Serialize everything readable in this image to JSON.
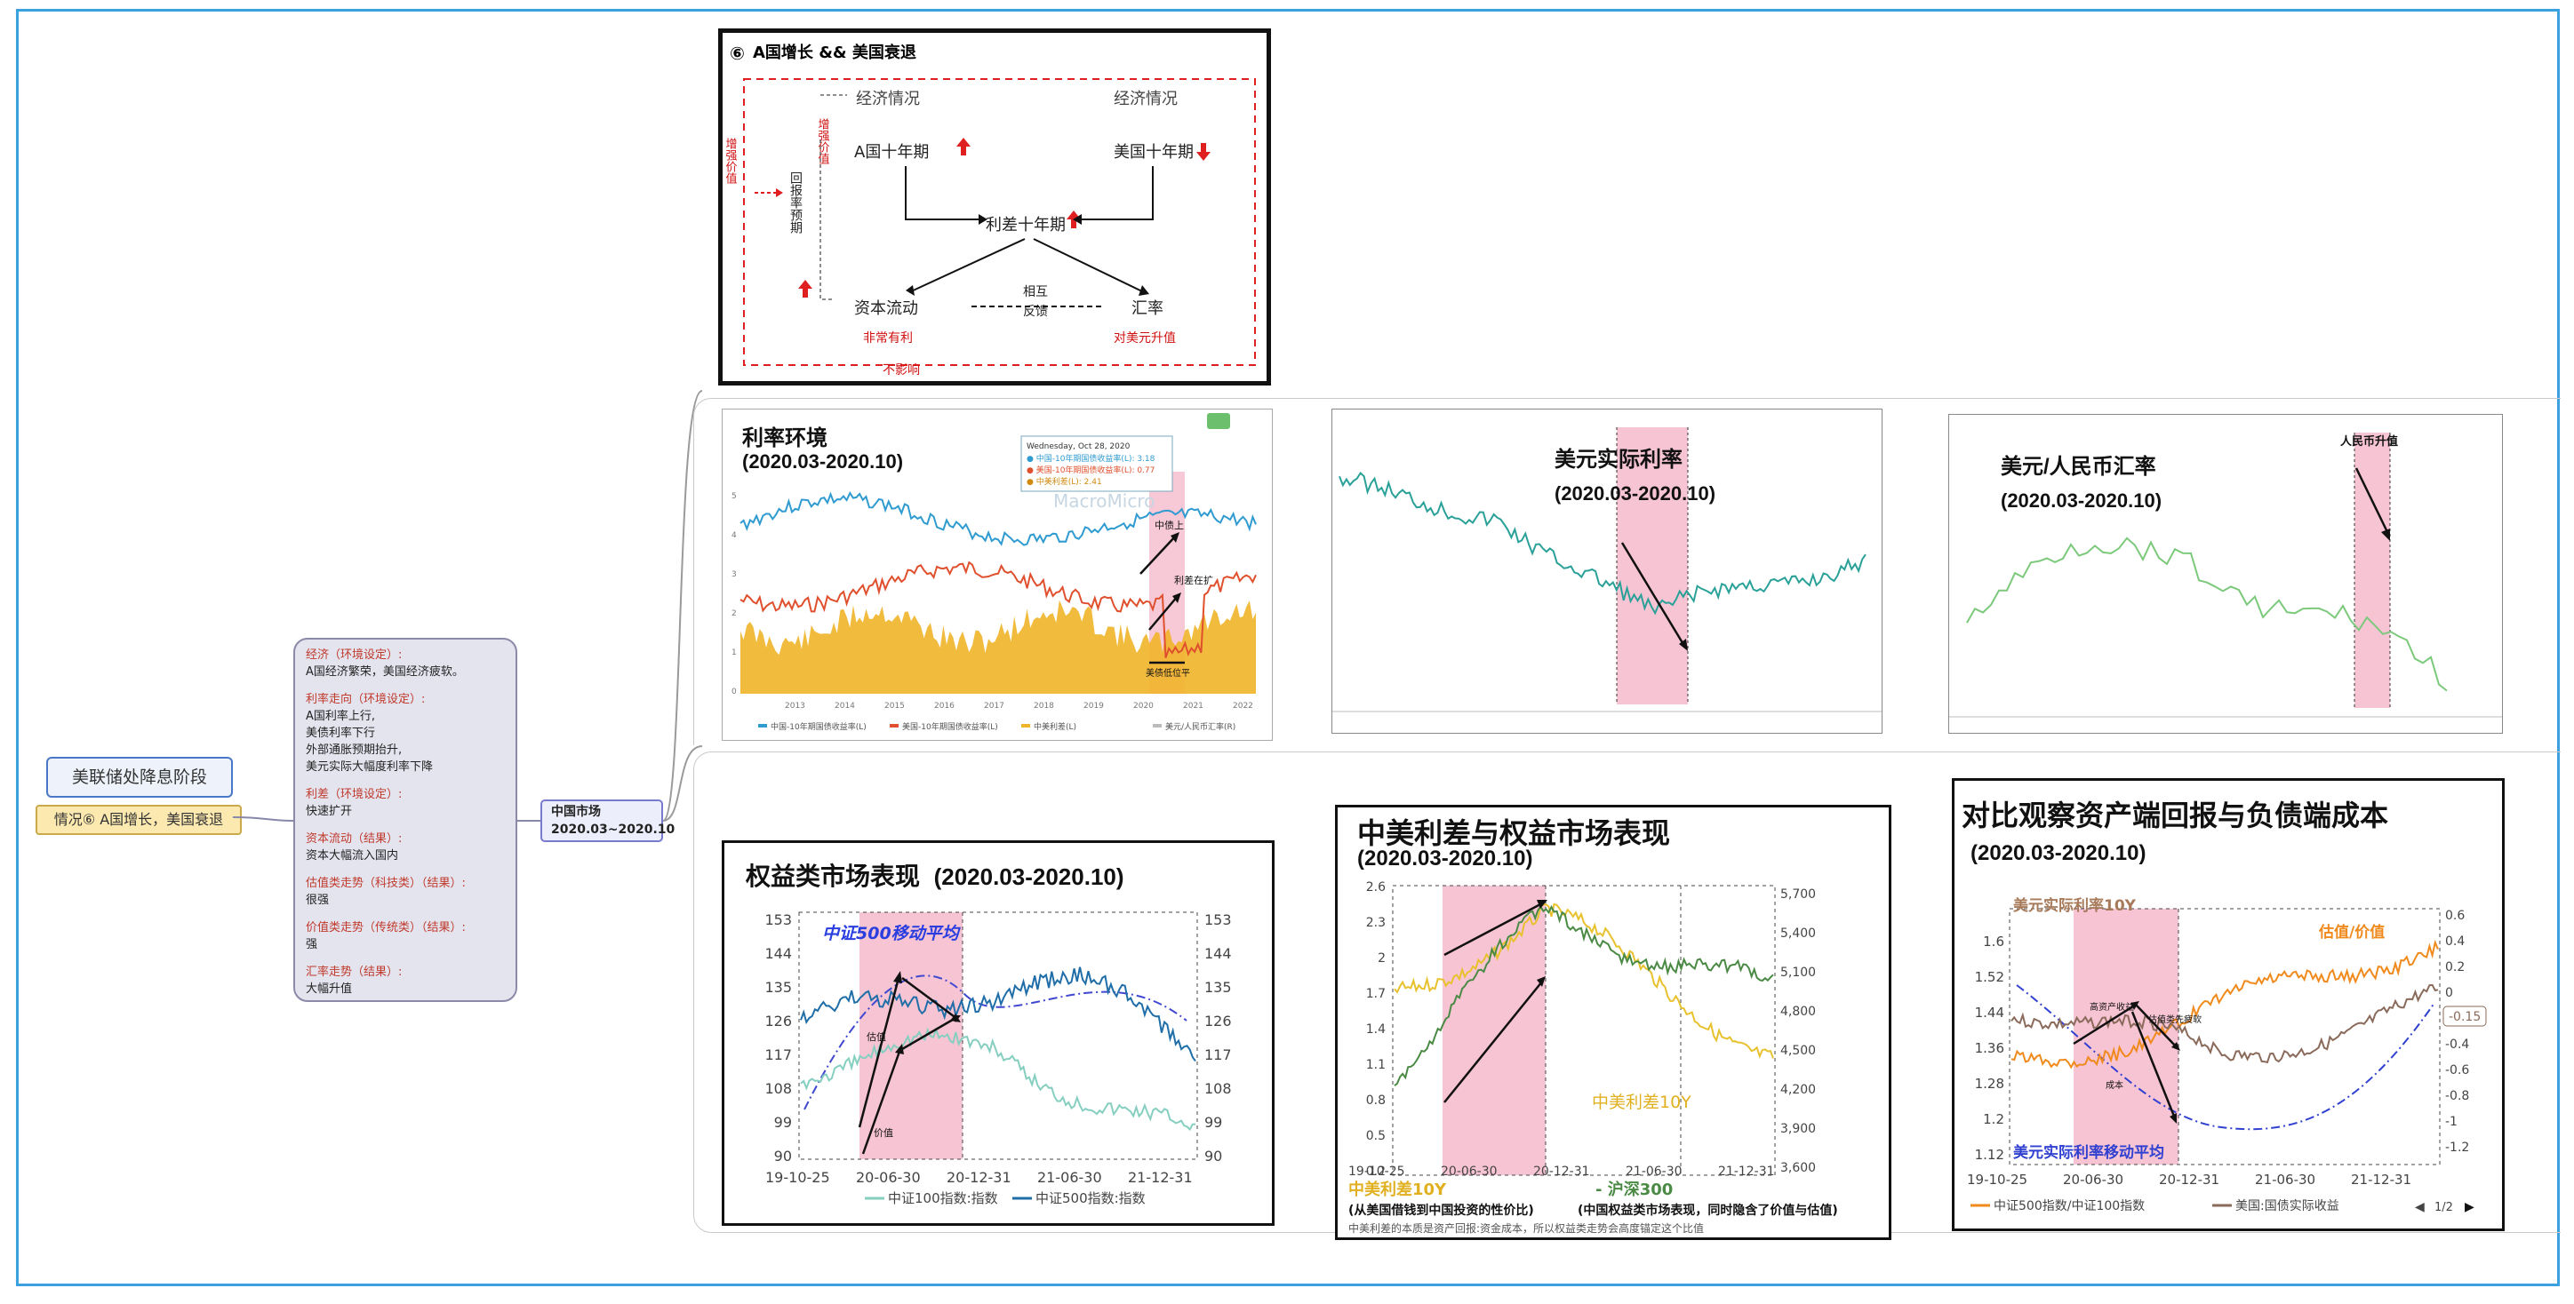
{
  "root": {
    "label": "美联储处降息阶段"
  },
  "case": {
    "label": "情况⑥ A国增长，美国衰退"
  },
  "china_market": {
    "line1": "中国市场",
    "line2": "2020.03~2020.10"
  },
  "notes": [
    {
      "head": "经济（环境设定）:",
      "body": [
        "A国经济繁荣，美国经济疲软。"
      ]
    },
    {
      "head": "利率走向（环境设定）:",
      "body": [
        "A国利率上行,",
        "美债利率下行",
        "外部通胀预期抬升,",
        "美元实际大幅度利率下降"
      ]
    },
    {
      "head": "利差（环境设定）:",
      "body": [
        "快速扩开"
      ]
    },
    {
      "head": "资本流动（结果）:",
      "body": [
        "资本大幅流入国内"
      ]
    },
    {
      "head": "估值类走势（科技类）（结果）:",
      "body": [
        "很强"
      ]
    },
    {
      "head": "价值类走势（传统类）（结果）:",
      "body": [
        "强"
      ]
    },
    {
      "head": "汇率走势（结果）:",
      "body": [
        "大幅升值"
      ]
    }
  ],
  "diagram": {
    "num": "⑥",
    "title": "A国增长 && 美国衰退",
    "econ_left": "经济情况",
    "econ_right": "经济情况",
    "a_10y": "A国十年期",
    "us_10y": "美国十年期",
    "spread": "利差十年期",
    "capital": "资本流动",
    "fx": "汇率",
    "mutual": "相互",
    "feedback": "反馈",
    "very_good": "非常有利",
    "usd_up": "对美元升值",
    "no_effect": "不影响",
    "growth_value": "增强价值",
    "growth_val2": "增强价值",
    "return_expect": "回报率预期"
  },
  "rate_env": {
    "title": "利率环境",
    "period": "(2020.03-2020.10)",
    "watermark": "MacroMicro",
    "tooltip_date": "Wednesday, Oct 28, 2020",
    "tooltip_rows": [
      "● 中国-10年期国债收益率(L): 3.18",
      "● 美国-10年期国债收益率(L): 0.77",
      "● 中美利差(L): 2.41"
    ],
    "ann1": "中债上",
    "ann2": "利差在扩",
    "ann3": "美债低位平",
    "x_ticks": [
      "2013",
      "2014",
      "2015",
      "2016",
      "2017",
      "2018",
      "2019",
      "2020",
      "2021",
      "2022"
    ],
    "y_ticks": [
      "5",
      "4",
      "3",
      "2",
      "1",
      "0"
    ],
    "legend": [
      "中国-10年期国债收益率(L)",
      "美国-10年期国债收益率(L)",
      "中美利差(L)",
      "美元/人民币汇率(R)"
    ]
  },
  "usd_real": {
    "title": "美元实际利率",
    "period": "(2020.03-2020.10)"
  },
  "usdcny": {
    "title": "美元/人民币汇率",
    "period": "(2020.03-2020.10)",
    "ann": "人民币升值"
  },
  "equity": {
    "title": "权益类市场表现",
    "period": "(2020.03-2020.10)",
    "ma_label": "中证500移动平均",
    "ann_growth": "估值",
    "ann_value": "价值",
    "y_ticks": [
      "153",
      "144",
      "135",
      "126",
      "117",
      "108",
      "99",
      "90"
    ],
    "x_ticks": [
      "19-10-25",
      "20-06-30",
      "20-12-31",
      "21-06-30",
      "21-12-31"
    ],
    "legend": [
      "中证100指数:指数",
      "中证500指数:指数"
    ]
  },
  "spread_equity": {
    "title": "中美利差与权益市场表现",
    "period": "(2020.03-2020.10)",
    "y_left": [
      "2.6",
      "2.3",
      "2",
      "1.7",
      "1.4",
      "1.1",
      "0.8",
      "0.5",
      "0.2"
    ],
    "y_right": [
      "5,700",
      "5,400",
      "5,100",
      "4,800",
      "4,500",
      "4,200",
      "3,900",
      "3,600"
    ],
    "x_ticks": [
      "19-10-25",
      "20-06-30",
      "20-12-31",
      "21-06-30",
      "21-12-31"
    ],
    "in_label": "中美利差10Y",
    "leg1": "中美利差10Y",
    "leg2": "- 沪深300",
    "sub1": "(从美国借钱到中国投资的性价比)",
    "sub2": "(中国权益类市场表现，同时隐含了价值与估值)",
    "foot": "中美利差的本质是资产回报:资金成本，所以权益类走势会高度锚定这个比值"
  },
  "compare": {
    "title": "对比观察资产端回报与负债端成本",
    "period": "(2020.03-2020.10)",
    "real10y": "美元实际利率10Y",
    "gv": "估值/价值",
    "ma": "美元实际利率移动平均",
    "ann1": "高资产收益",
    "ann2": "估值类先疲软",
    "ann3": "成本",
    "y_left": [
      "1.6",
      "1.52",
      "1.44",
      "1.36",
      "1.28",
      "1.2",
      "1.12"
    ],
    "y_right": [
      "0.6",
      "0.4",
      "0.2",
      "0",
      "-0.2",
      "-0.4",
      "-0.6",
      "-0.8",
      "-1",
      "-1.2"
    ],
    "badge": "-0.15",
    "x_ticks": [
      "19-10-25",
      "20-06-30",
      "20-12-31",
      "21-06-30",
      "21-12-31"
    ],
    "legend": [
      "中证500指数/中证100指数",
      "美国:国债实际收益"
    ],
    "pager": "1/2"
  },
  "colors": {
    "frame": "#3aa0e0",
    "pink": "#f7c4d4",
    "china": "#2f9bd0",
    "us": "#e0502e",
    "spread": "#f0b429",
    "teal": "#2aa198",
    "green": "#7cc97c"
  }
}
